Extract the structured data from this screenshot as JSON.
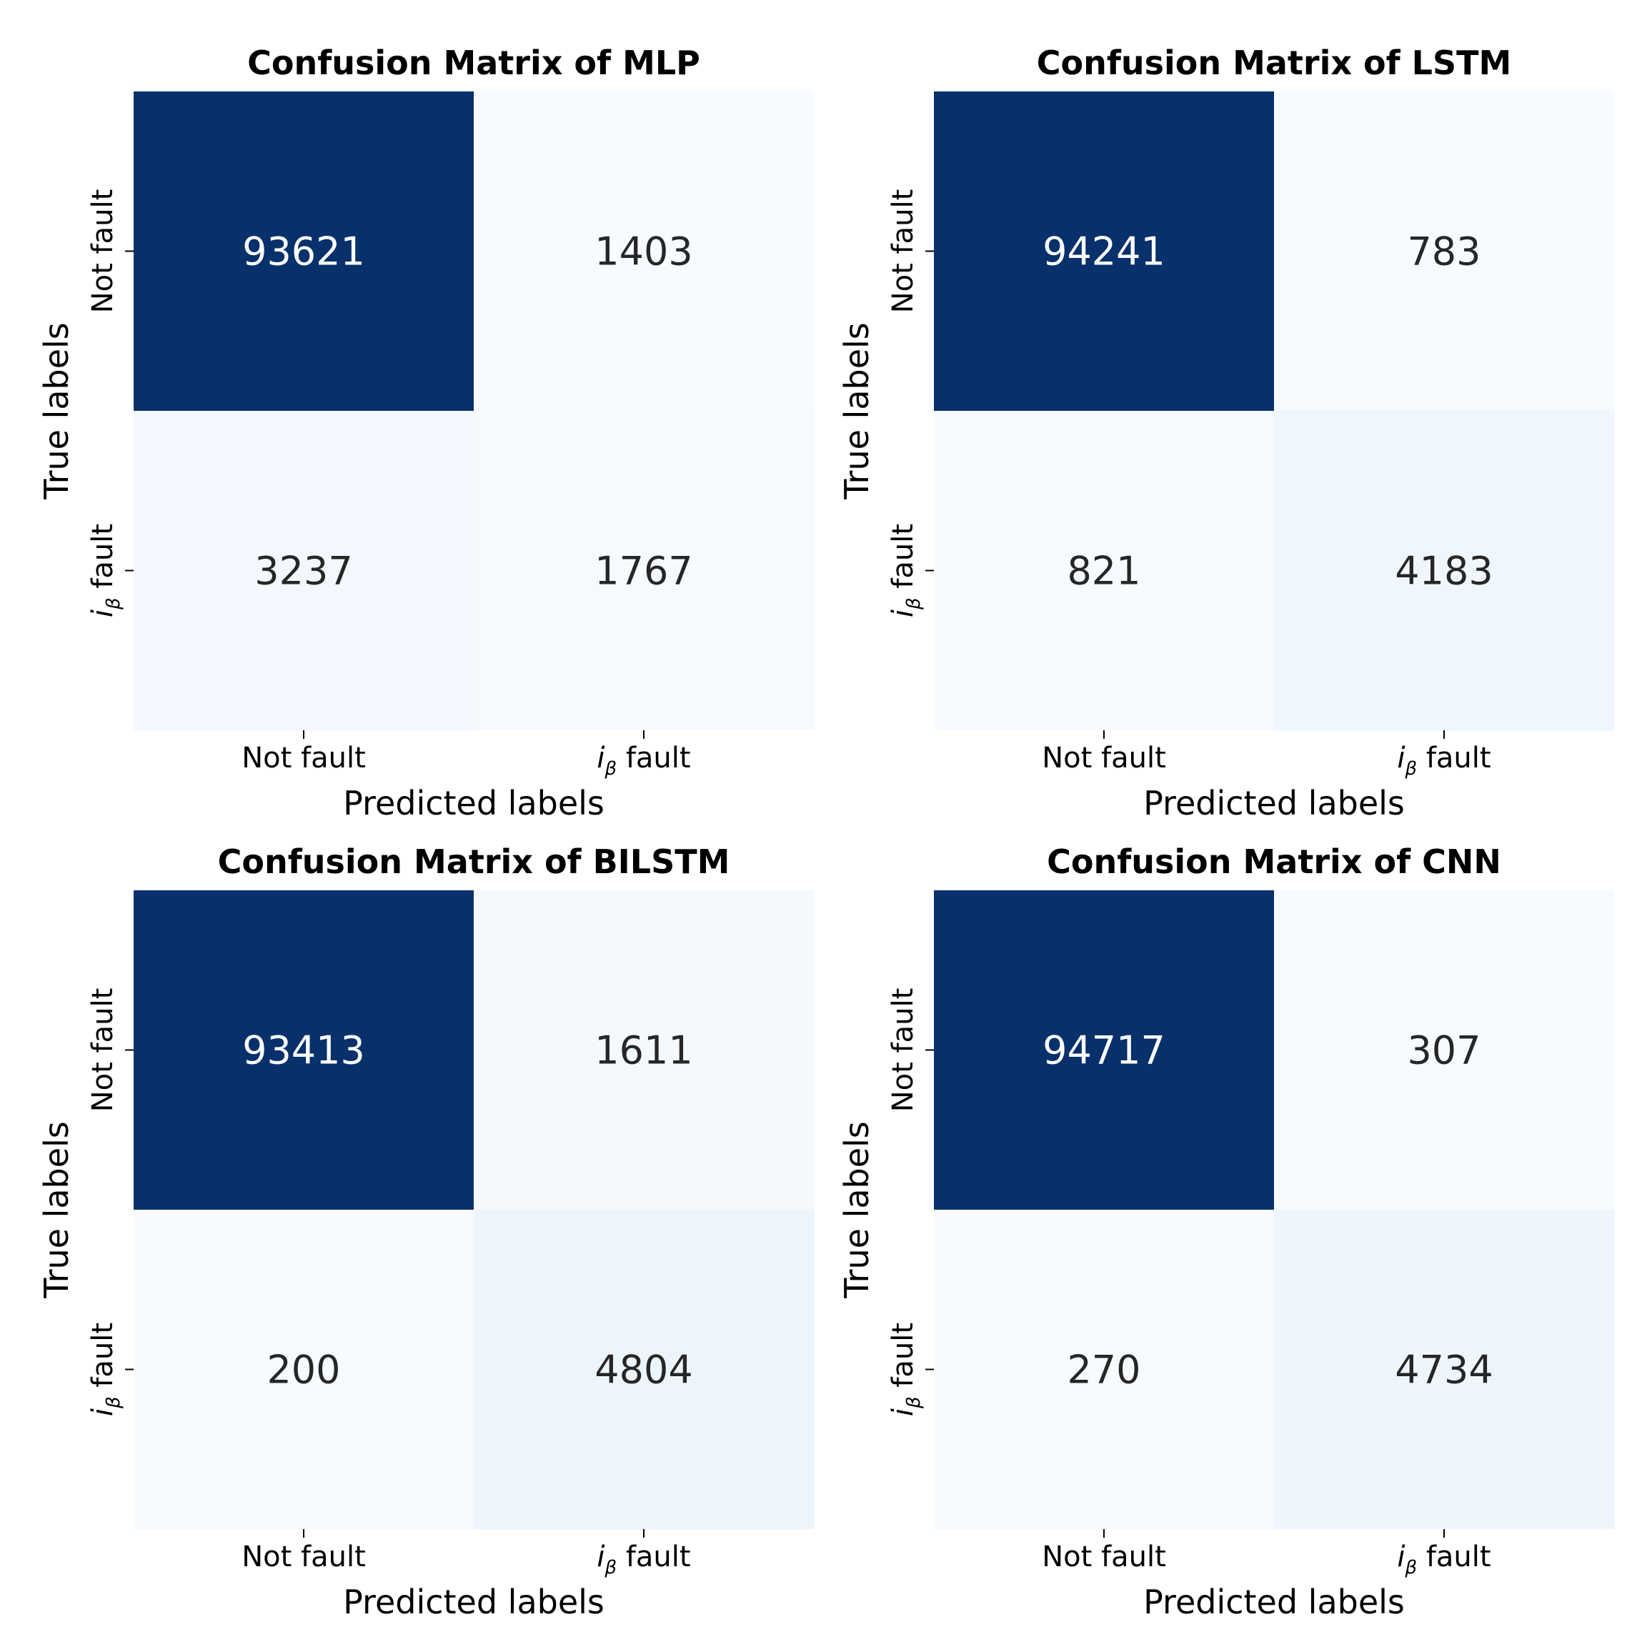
{
  "chart_data": [
    {
      "type": "heatmap",
      "title": "Confusion Matrix of MLP",
      "xlabel": "Predicted labels",
      "ylabel": "True labels",
      "x_categories": [
        "Not fault",
        "iβ fault"
      ],
      "y_categories": [
        "Not fault",
        "iβ fault"
      ],
      "values": [
        [
          93621,
          1403
        ],
        [
          3237,
          1767
        ]
      ],
      "colormap": "Blues"
    },
    {
      "type": "heatmap",
      "title": "Confusion Matrix of LSTM",
      "xlabel": "Predicted labels",
      "ylabel": "True labels",
      "x_categories": [
        "Not fault",
        "iβ fault"
      ],
      "y_categories": [
        "Not fault",
        "iβ fault"
      ],
      "values": [
        [
          94241,
          783
        ],
        [
          821,
          4183
        ]
      ],
      "colormap": "Blues"
    },
    {
      "type": "heatmap",
      "title": "Confusion Matrix of BILSTM",
      "xlabel": "Predicted labels",
      "ylabel": "True labels",
      "x_categories": [
        "Not fault",
        "iβ fault"
      ],
      "y_categories": [
        "Not fault",
        "iβ fault"
      ],
      "values": [
        [
          93413,
          1611
        ],
        [
          200,
          4804
        ]
      ],
      "colormap": "Blues"
    },
    {
      "type": "heatmap",
      "title": "Confusion Matrix of CNN",
      "xlabel": "Predicted labels",
      "ylabel": "True labels",
      "x_categories": [
        "Not fault",
        "iβ fault"
      ],
      "y_categories": [
        "Not fault",
        "iβ fault"
      ],
      "values": [
        [
          94717,
          307
        ],
        [
          270,
          4734
        ]
      ],
      "colormap": "Blues"
    }
  ]
}
